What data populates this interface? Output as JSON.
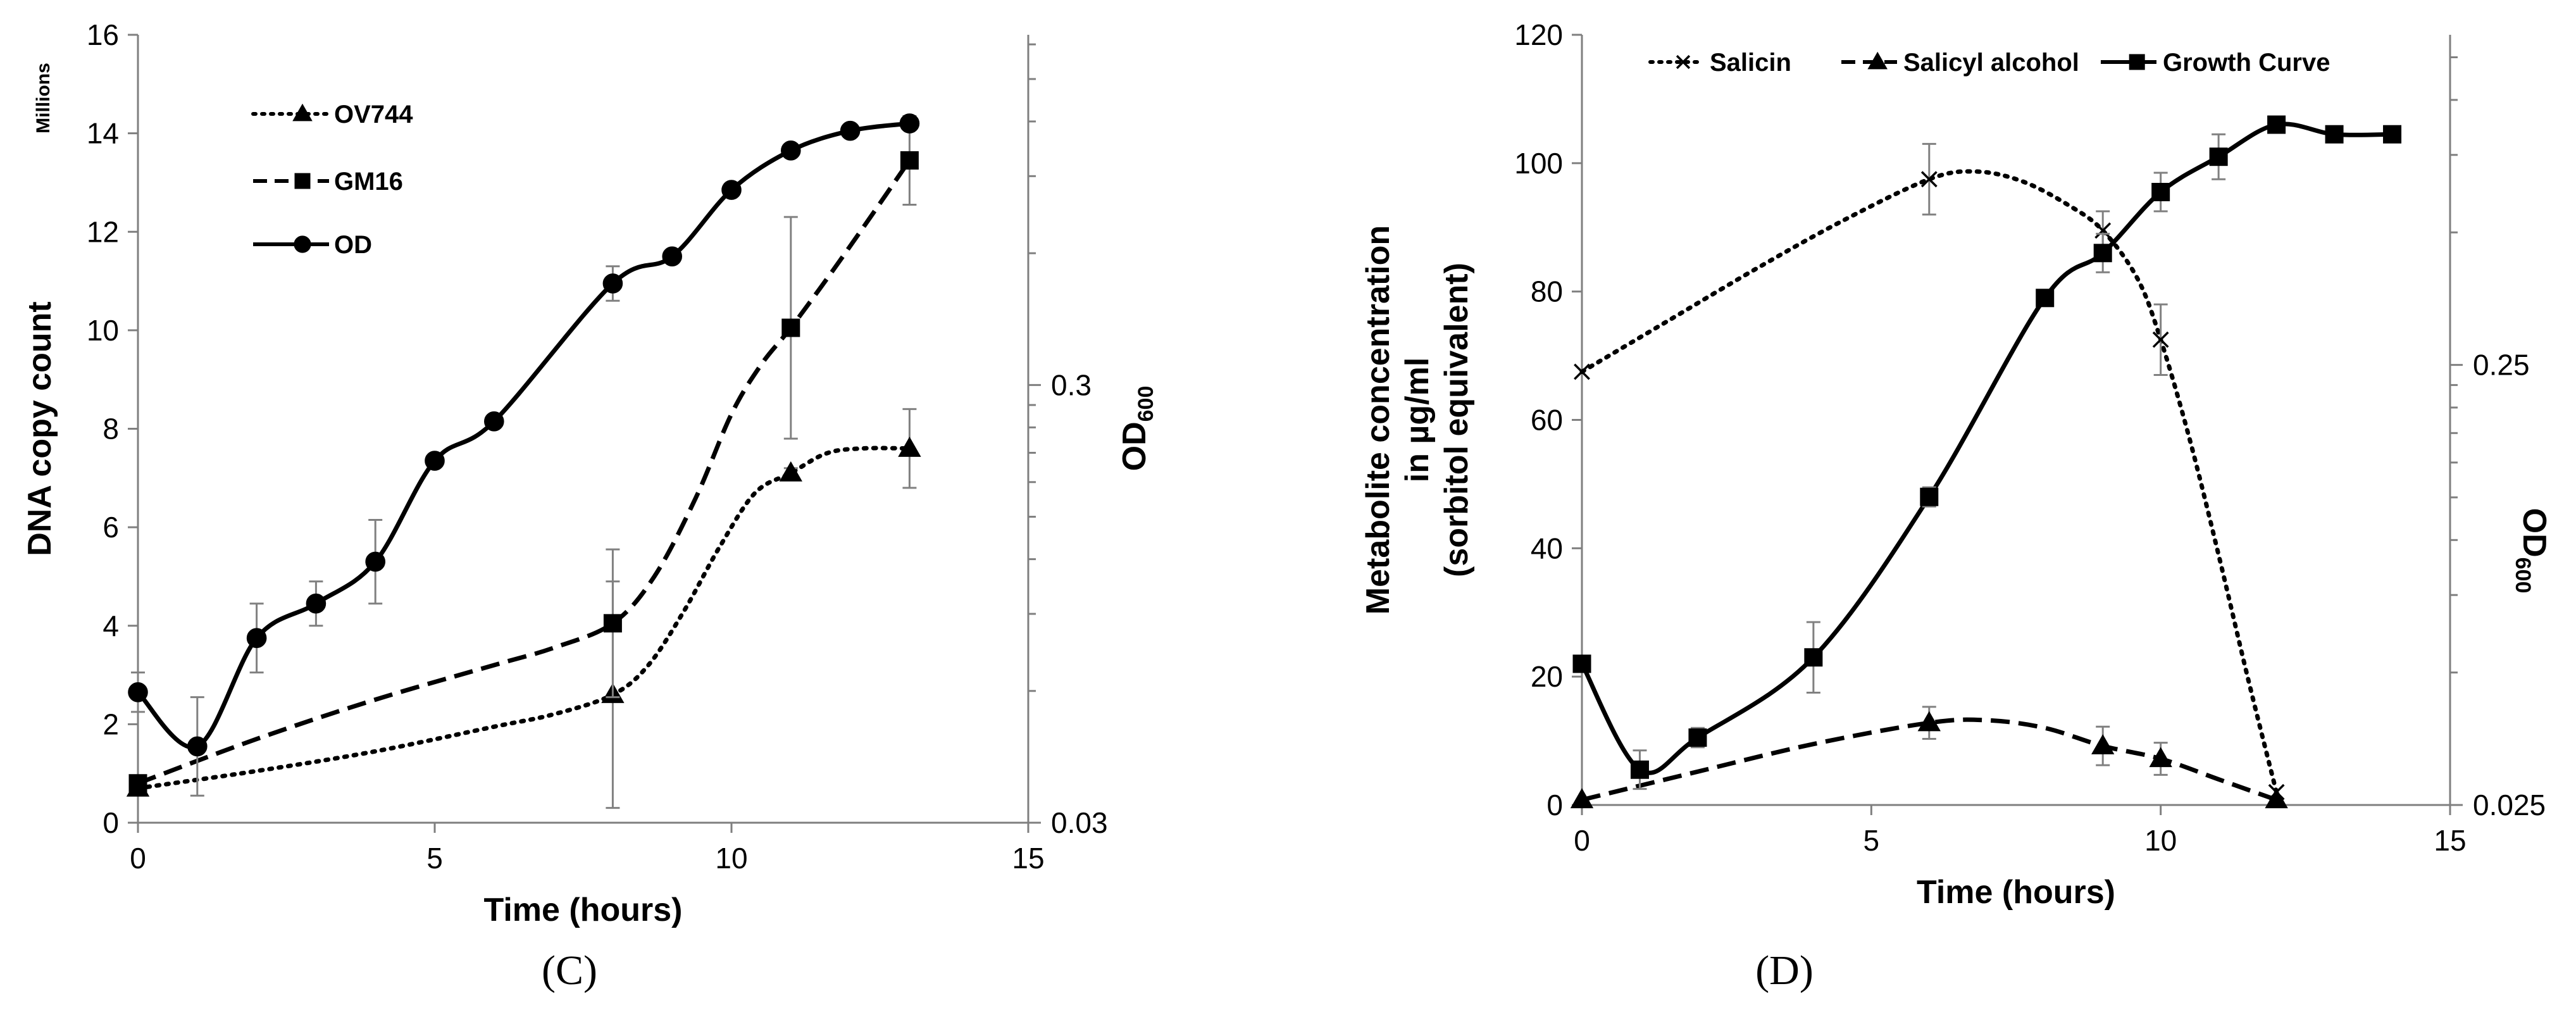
{
  "figure_panels": [
    "(C)",
    "(D)"
  ],
  "chart_data": [
    {
      "type": "line",
      "panel_label": "(C)",
      "title": "",
      "xlabel": "Time (hours)",
      "ylabel": "DNA copy count",
      "y_unit_note": "Millions",
      "y2label": "OD600",
      "y2label_main": "OD",
      "y2label_sub": "600",
      "xlim": [
        0,
        15
      ],
      "ylim": [
        0,
        16
      ],
      "x_ticks": [
        0,
        5,
        10,
        15
      ],
      "y_ticks": [
        0,
        2,
        4,
        6,
        8,
        10,
        12,
        14,
        16
      ],
      "y2_scale": "log",
      "y2_tick_labels": [
        {
          "value": 0.03,
          "label": "0.03"
        },
        {
          "value": 0.3,
          "label": "0.3"
        }
      ],
      "legend_position": "top-left",
      "series": [
        {
          "name": "OV744",
          "style": "dotted",
          "marker": "triangle",
          "x": [
            0,
            8,
            11,
            13
          ],
          "values": [
            0.7,
            2.6,
            7.1,
            7.6
          ],
          "error": [
            0.1,
            2.3,
            0.1,
            0.8
          ],
          "curve": [
            [
              0,
              0.7
            ],
            [
              2,
              1.05
            ],
            [
              4,
              1.45
            ],
            [
              6,
              1.95
            ],
            [
              7,
              2.2
            ],
            [
              8,
              2.6
            ],
            [
              8.6,
              3.2
            ],
            [
              9.2,
              4.3
            ],
            [
              9.8,
              5.6
            ],
            [
              10.4,
              6.7
            ],
            [
              11,
              7.1
            ],
            [
              11.6,
              7.5
            ],
            [
              12.2,
              7.6
            ],
            [
              13,
              7.6
            ]
          ]
        },
        {
          "name": "GM16",
          "style": "dashed",
          "marker": "square",
          "x": [
            0,
            8,
            11,
            13
          ],
          "values": [
            0.8,
            4.05,
            10.05,
            13.45
          ],
          "error": [
            0.1,
            1.5,
            2.25,
            0.9
          ],
          "curve": [
            [
              0,
              0.8
            ],
            [
              2,
              1.7
            ],
            [
              4,
              2.5
            ],
            [
              6,
              3.2
            ],
            [
              7,
              3.55
            ],
            [
              8,
              4.05
            ],
            [
              8.7,
              5.0
            ],
            [
              9.4,
              6.6
            ],
            [
              10,
              8.3
            ],
            [
              10.5,
              9.3
            ],
            [
              11,
              10.05
            ],
            [
              11.7,
              11.2
            ],
            [
              12.4,
              12.4
            ],
            [
              13,
              13.45
            ]
          ]
        },
        {
          "name": "OD",
          "style": "solid",
          "marker": "circle",
          "x": [
            0,
            1,
            2,
            3,
            4,
            5,
            6,
            8,
            9,
            10,
            11,
            12,
            13
          ],
          "values": [
            2.65,
            1.55,
            3.75,
            4.45,
            5.3,
            7.35,
            8.15,
            10.95,
            11.5,
            12.85,
            13.65,
            14.05,
            14.2
          ],
          "error": [
            0.4,
            1.0,
            0.7,
            0.45,
            0.85,
            0,
            0,
            0.35,
            0,
            0,
            0,
            0,
            0
          ]
        }
      ]
    },
    {
      "type": "line",
      "panel_label": "(D)",
      "title": "",
      "xlabel": "Time (hours)",
      "ylabel_lines": [
        "Metabolite concentration",
        "in µg/ml",
        "(sorbitol equivalent)"
      ],
      "y2label": "OD600",
      "y2label_main": "OD",
      "y2label_sub": "600",
      "xlim": [
        0,
        15
      ],
      "ylim": [
        0,
        120
      ],
      "x_ticks": [
        0,
        5,
        10,
        15
      ],
      "y_ticks": [
        0,
        20,
        40,
        60,
        80,
        100,
        120
      ],
      "y2_scale": "log",
      "y2_tick_labels": [
        {
          "value": 0.025,
          "label": "0.025"
        },
        {
          "value": 0.25,
          "label": "0.25"
        }
      ],
      "legend_position": "top",
      "series": [
        {
          "name": "Salicin",
          "style": "dotted",
          "marker": "x",
          "x": [
            0,
            6,
            9,
            10,
            12
          ],
          "values": [
            67.5,
            97.5,
            89.5,
            72.5,
            2.0
          ],
          "error": [
            0,
            5.5,
            3.0,
            5.5,
            0
          ],
          "curve": [
            [
              0,
              67.5
            ],
            [
              1.5,
              75.5
            ],
            [
              3,
              83.5
            ],
            [
              4.5,
              91
            ],
            [
              6,
              97.5
            ],
            [
              6.8,
              98.7
            ],
            [
              7.6,
              97.2
            ],
            [
              8.4,
              93.5
            ],
            [
              9,
              89.5
            ],
            [
              9.6,
              82
            ],
            [
              10,
              72.5
            ],
            [
              10.5,
              57
            ],
            [
              11,
              39
            ],
            [
              11.5,
              20
            ],
            [
              12,
              2
            ]
          ]
        },
        {
          "name": "Salicyl alcohol",
          "style": "dashed",
          "marker": "triangle",
          "x": [
            0,
            6,
            9,
            10,
            12
          ],
          "values": [
            0.8,
            12.8,
            9.2,
            7.2,
            0.8
          ],
          "error": [
            0,
            2.5,
            3.0,
            2.5,
            0
          ],
          "curve": [
            [
              0,
              0.8
            ],
            [
              2,
              5.2
            ],
            [
              4,
              9.5
            ],
            [
              6,
              12.8
            ],
            [
              7,
              13.2
            ],
            [
              8,
              12.0
            ],
            [
              9,
              9.2
            ],
            [
              10,
              7.2
            ],
            [
              11,
              4.0
            ],
            [
              12,
              0.8
            ]
          ]
        },
        {
          "name": "Growth Curve",
          "style": "solid",
          "marker": "square",
          "x": [
            0,
            1,
            2,
            4,
            6,
            8,
            9,
            10,
            11,
            12,
            13,
            14
          ],
          "values": [
            22,
            5.5,
            10.5,
            23,
            48,
            79,
            86,
            95.5,
            101,
            106,
            104.5,
            104.5
          ],
          "error": [
            0,
            3.0,
            1.5,
            5.5,
            1.5,
            0,
            3.0,
            3.0,
            3.5,
            1.0,
            0,
            0
          ]
        }
      ]
    }
  ]
}
